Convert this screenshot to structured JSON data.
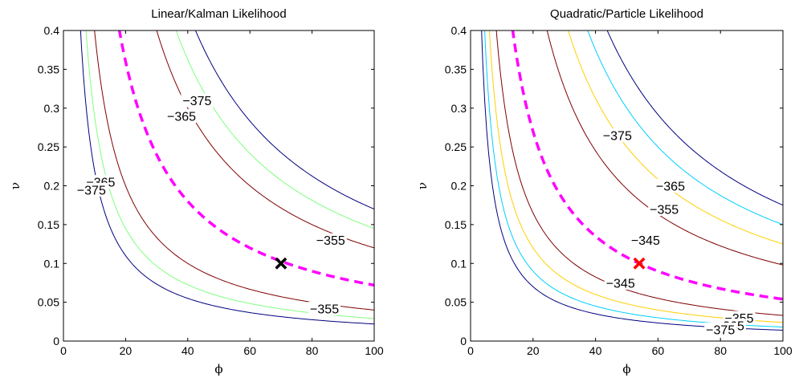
{
  "chart_data": [
    {
      "type": "contour",
      "title": "Linear/Kalman Likelihood",
      "xlabel": "ϕ",
      "ylabel": "ν",
      "xlim": [
        0,
        100
      ],
      "ylim": [
        0,
        0.4
      ],
      "xticks": [
        "0",
        "20",
        "40",
        "60",
        "80",
        "100"
      ],
      "yticks": [
        "0",
        "0.05",
        "0.1",
        "0.15",
        "0.2",
        "0.25",
        "0.3",
        "0.35",
        "0.4"
      ],
      "grid": false,
      "contours": [
        {
          "level": -375,
          "color": "#00007f",
          "lower_k": 2.2,
          "upper_k": 17.0
        },
        {
          "level": -365,
          "color": "#7fff7f",
          "lower_k": 2.9,
          "upper_k": 14.5
        },
        {
          "level": -355,
          "color": "#7f0000",
          "lower_k": 4.0,
          "upper_k": 12.0
        }
      ],
      "contour_labels": [
        {
          "text": "−375",
          "x": 43,
          "y": 0.31
        },
        {
          "text": "−365",
          "x": 38,
          "y": 0.29
        },
        {
          "text": "−365",
          "x": 12,
          "y": 0.205
        },
        {
          "text": "−375",
          "x": 9,
          "y": 0.195
        },
        {
          "text": "−355",
          "x": 86,
          "y": 0.13
        },
        {
          "text": "−355",
          "x": 84,
          "y": 0.042
        }
      ],
      "ridge": {
        "color": "#ff00ff",
        "style": "dashed",
        "k": 7.2
      },
      "marker": {
        "x": 70,
        "y": 0.1,
        "color": "#000000",
        "symbol": "x"
      }
    },
    {
      "type": "contour",
      "title": "Quadratic/Particle Likelihood",
      "xlabel": "ϕ",
      "ylabel": "ν",
      "xlim": [
        0,
        100
      ],
      "ylim": [
        0,
        0.4
      ],
      "xticks": [
        "0",
        "20",
        "40",
        "60",
        "80",
        "100"
      ],
      "yticks": [
        "0",
        "0.05",
        "0.1",
        "0.15",
        "0.2",
        "0.25",
        "0.3",
        "0.35",
        "0.4"
      ],
      "grid": false,
      "contours": [
        {
          "level": -375,
          "color": "#00007f",
          "lower_k": 1.4,
          "upper_k": 17.5
        },
        {
          "level": -365,
          "color": "#00cfff",
          "lower_k": 1.8,
          "upper_k": 15.0
        },
        {
          "level": -355,
          "color": "#ffcf00",
          "lower_k": 2.4,
          "upper_k": 12.5
        },
        {
          "level": -345,
          "color": "#7f0000",
          "lower_k": 3.3,
          "upper_k": 9.8
        }
      ],
      "contour_labels": [
        {
          "text": "−375",
          "x": 47,
          "y": 0.265
        },
        {
          "text": "−365",
          "x": 64,
          "y": 0.2
        },
        {
          "text": "−355",
          "x": 62,
          "y": 0.17
        },
        {
          "text": "−345",
          "x": 56,
          "y": 0.13
        },
        {
          "text": "−345",
          "x": 48,
          "y": 0.075
        },
        {
          "text": "−355",
          "x": 86,
          "y": 0.03
        },
        {
          "text": "−365",
          "x": 83,
          "y": 0.02
        },
        {
          "text": "−375",
          "x": 80,
          "y": 0.015
        }
      ],
      "ridge": {
        "color": "#ff00ff",
        "style": "dashed",
        "k": 5.4
      },
      "marker": {
        "x": 54,
        "y": 0.1,
        "color": "#ff0000",
        "symbol": "x"
      }
    }
  ]
}
